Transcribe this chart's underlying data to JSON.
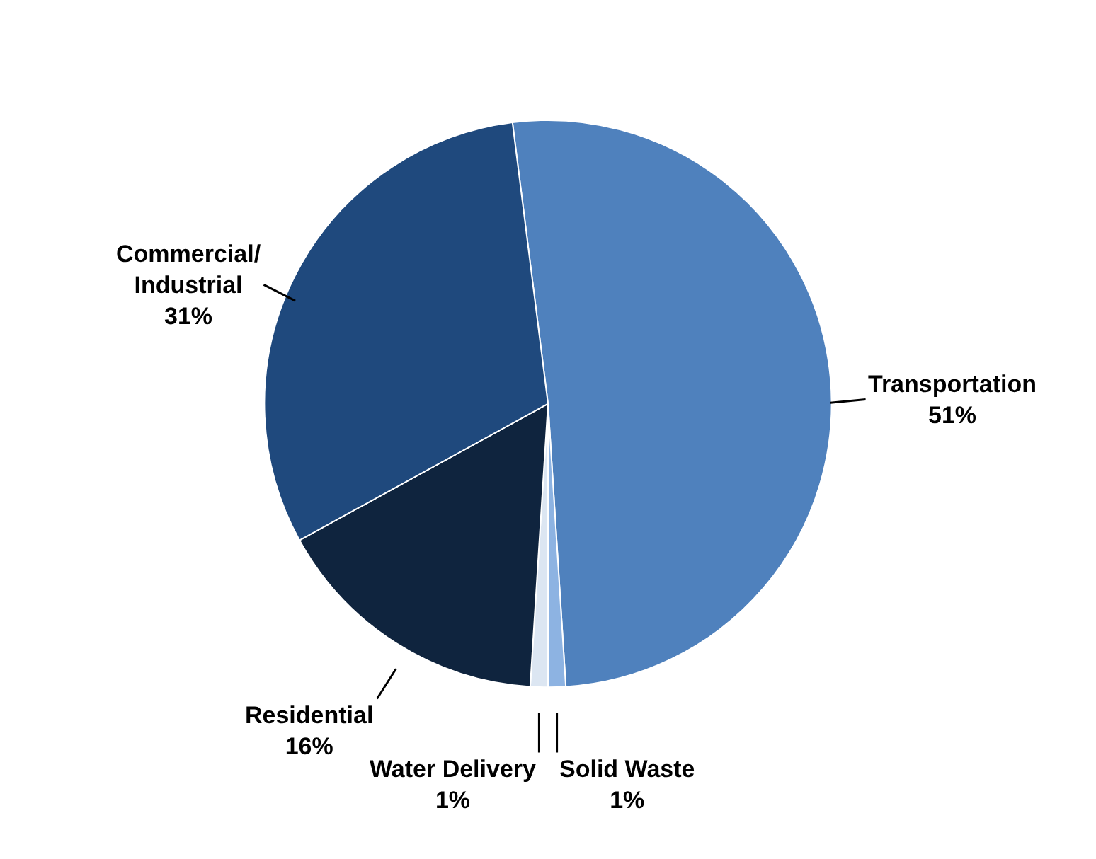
{
  "chart_data": {
    "type": "pie",
    "categories": [
      "Transportation",
      "Solid Waste",
      "Water Delivery",
      "Residential",
      "Commercial/Industrial"
    ],
    "values": [
      51,
      1,
      1,
      16,
      31
    ],
    "value_labels": [
      "51%",
      "1%",
      "1%",
      "16%",
      "31%"
    ],
    "colors": [
      "#4f81bd",
      "#8db3e2",
      "#dce6f2",
      "#0f243e",
      "#1f497d"
    ],
    "legend": false
  }
}
